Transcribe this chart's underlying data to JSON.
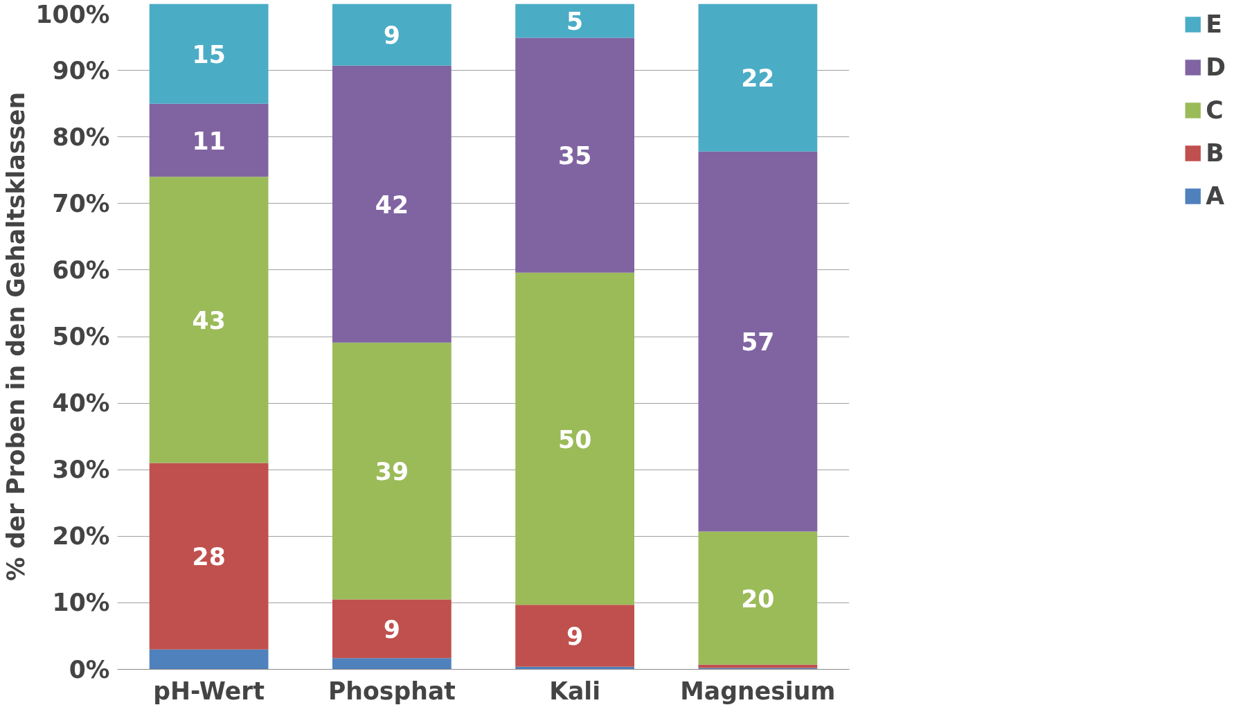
{
  "chart_data": {
    "type": "bar",
    "stacked": true,
    "ylabel": "% der Proben in den Gehaltsklassen",
    "categories": [
      "pH-Wert",
      "Phosphat",
      "Kali",
      "Magnesium"
    ],
    "series": [
      {
        "name": "A",
        "color": "#4f81bd",
        "values": [
          3,
          1.7,
          0.4,
          0.2
        ],
        "value_labels": [
          null,
          null,
          null,
          null
        ]
      },
      {
        "name": "B",
        "color": "#c0504d",
        "values": [
          28,
          8.8,
          9.3,
          0.5
        ],
        "value_labels": [
          "28",
          "9",
          "9",
          null
        ]
      },
      {
        "name": "C",
        "color": "#9bbb59",
        "values": [
          43,
          38.6,
          49.9,
          20
        ],
        "value_labels": [
          "43",
          "39",
          "50",
          "20"
        ]
      },
      {
        "name": "D",
        "color": "#8064a2",
        "values": [
          11,
          41.6,
          35.3,
          57.1
        ],
        "value_labels": [
          "11",
          "42",
          "35",
          "57"
        ]
      },
      {
        "name": "E",
        "color": "#4bacc6",
        "values": [
          15,
          9.3,
          5.1,
          22.2
        ],
        "value_labels": [
          "15",
          "9",
          "5",
          "22"
        ]
      }
    ],
    "ylim": [
      0,
      100
    ],
    "yticks": [
      {
        "value": 0,
        "label": "0%"
      },
      {
        "value": 10,
        "label": "10%"
      },
      {
        "value": 20,
        "label": "20%"
      },
      {
        "value": 30,
        "label": "30%"
      },
      {
        "value": 40,
        "label": "40%"
      },
      {
        "value": 50,
        "label": "50%"
      },
      {
        "value": 60,
        "label": "60%"
      },
      {
        "value": 70,
        "label": "70%"
      },
      {
        "value": 80,
        "label": "80%"
      },
      {
        "value": 90,
        "label": "90%"
      },
      {
        "value": 100,
        "label": "100%"
      }
    ],
    "grid": "y",
    "legend": "right"
  }
}
